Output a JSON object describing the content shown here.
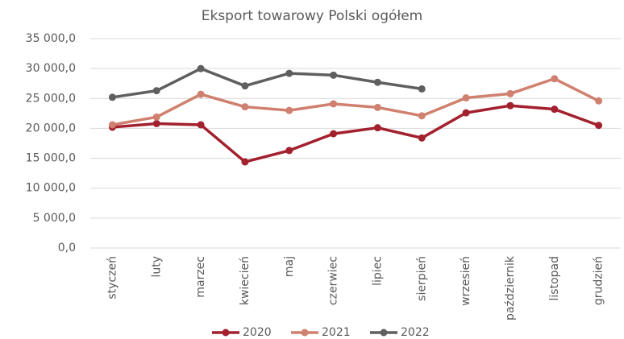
{
  "chart_data": {
    "type": "line",
    "title": "Eksport towarowy Polski ogółem",
    "categories": [
      "styczeń",
      "luty",
      "marzec",
      "kwiecień",
      "maj",
      "czerwiec",
      "lipiec",
      "sierpień",
      "wrzesień",
      "październik",
      "listopad",
      "grudzień"
    ],
    "series": [
      {
        "name": "2020",
        "color": "#a3202e",
        "values": [
          20200,
          20800,
          20600,
          14400,
          16300,
          19100,
          20100,
          18400,
          22600,
          23800,
          23200,
          20500
        ]
      },
      {
        "name": "2021",
        "color": "#d0806f",
        "values": [
          20600,
          21900,
          25700,
          23600,
          23000,
          24100,
          23500,
          22100,
          25100,
          25800,
          28300,
          24600
        ]
      },
      {
        "name": "2022",
        "color": "#5f5f5f",
        "values": [
          25200,
          26300,
          30000,
          27100,
          29200,
          28900,
          27700,
          26600,
          null,
          null,
          null,
          null
        ]
      }
    ],
    "ylim": [
      0,
      35000
    ],
    "yticks": [
      {
        "value": 0,
        "label": "0,0"
      },
      {
        "value": 5000,
        "label": "5 000,0"
      },
      {
        "value": 10000,
        "label": "10 000,0"
      },
      {
        "value": 15000,
        "label": "15 000,0"
      },
      {
        "value": 20000,
        "label": "20 000,0"
      },
      {
        "value": 25000,
        "label": "25 000,0"
      },
      {
        "value": 30000,
        "label": "30 000,0"
      },
      {
        "value": 35000,
        "label": "35 000,0"
      }
    ],
    "grid": true,
    "legend": "bottom"
  }
}
